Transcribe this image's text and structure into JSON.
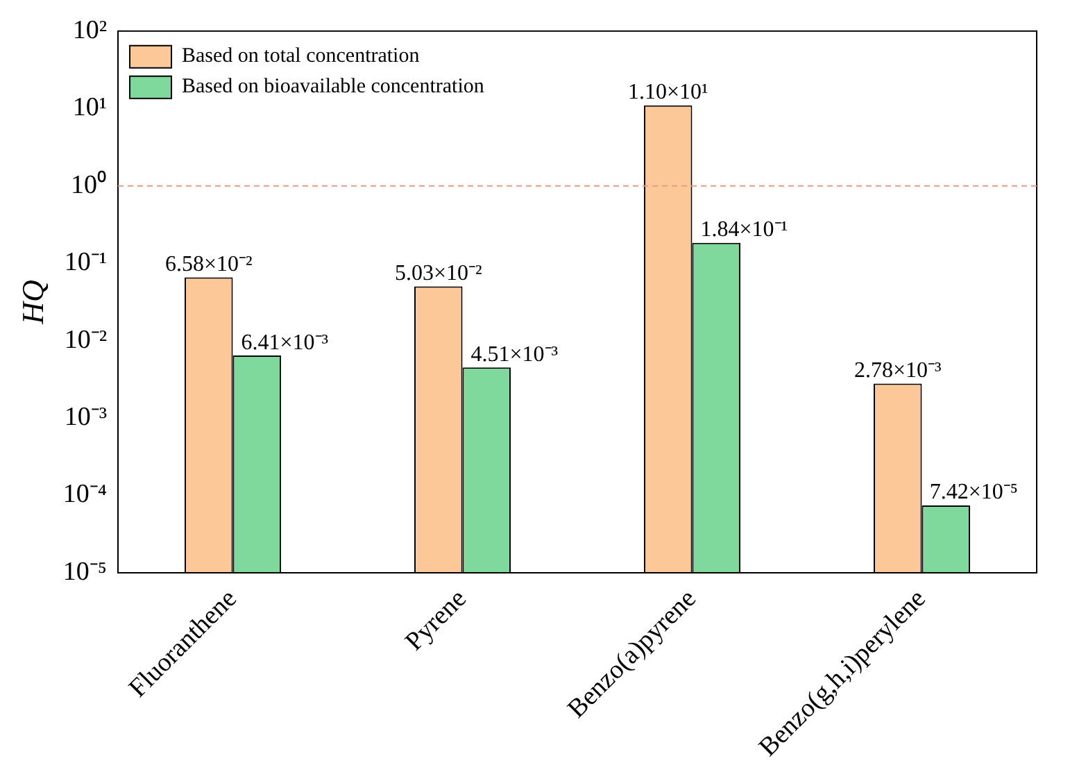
{
  "chart_data": {
    "type": "bar",
    "ylabel": "HQ",
    "categories": [
      "Fluoranthene",
      "Pyrene",
      "Benzo(a)pyrene",
      "Benzo(g,h,i)perylene"
    ],
    "series": [
      {
        "name": "Based on total concentration",
        "color": "#fdc897",
        "values": [
          0.0658,
          0.0503,
          11.0,
          0.00278
        ],
        "value_labels": [
          "6.58×10⁻²",
          "5.03×10⁻²",
          "1.10×10¹",
          "2.78×10⁻³"
        ]
      },
      {
        "name": "Based on bioavailable concentration",
        "color": "#7fd99c",
        "values": [
          0.00641,
          0.00451,
          0.184,
          7.42e-05
        ],
        "value_labels": [
          "6.41×10⁻³",
          "4.51×10⁻³",
          "1.84×10⁻¹",
          "7.42×10⁻⁵"
        ]
      }
    ],
    "log": "y",
    "ylim": [
      1e-05,
      100
    ],
    "yticks": [
      {
        "value": 1e-05,
        "label": "10⁻⁵"
      },
      {
        "value": 0.0001,
        "label": "10⁻⁴"
      },
      {
        "value": 0.001,
        "label": "10⁻³"
      },
      {
        "value": 0.01,
        "label": "10⁻²"
      },
      {
        "value": 0.1,
        "label": "10⁻¹"
      },
      {
        "value": 1,
        "label": "10⁰"
      },
      {
        "value": 10,
        "label": "10¹"
      },
      {
        "value": 100,
        "label": "10²"
      }
    ],
    "ref_lines": [
      {
        "axis": "y",
        "value": 1,
        "color": "#e89a8a",
        "line_style": "dashed"
      }
    ],
    "grid": false,
    "legend": "top left"
  }
}
